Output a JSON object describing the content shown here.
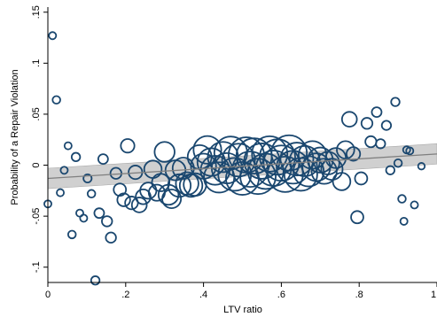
{
  "chart_data": {
    "type": "scatter",
    "title": "",
    "xlabel": "LTV ratio",
    "ylabel": "Probability of a Repair Violation",
    "xlim": [
      0,
      1
    ],
    "ylim": [
      -0.115,
      0.155
    ],
    "x_ticks": [
      {
        "value": 0,
        "label": "0"
      },
      {
        "value": 0.2,
        "label": ".2"
      },
      {
        "value": 0.4,
        "label": ".4"
      },
      {
        "value": 0.6,
        "label": ".6"
      },
      {
        "value": 0.8,
        "label": ".8"
      },
      {
        "value": 1,
        "label": "1"
      }
    ],
    "y_ticks": [
      {
        "value": -0.1,
        "label": "-.1"
      },
      {
        "value": -0.05,
        "label": "-.05"
      },
      {
        "value": 0,
        "label": "0"
      },
      {
        "value": 0.05,
        "label": ".05"
      },
      {
        "value": 0.1,
        "label": ".1"
      },
      {
        "value": 0.15,
        "label": ".15"
      }
    ],
    "grid": false,
    "legend": "none",
    "colors": {
      "marker": "#1a476f",
      "fit_line": "#7f7f7f",
      "ci_band": "#c0c0c0",
      "axis": "#000000"
    },
    "fit": {
      "type": "linear",
      "x": [
        0,
        1
      ],
      "y": [
        -0.013,
        0.011
      ],
      "ci_lower": [
        -0.023,
        0.001
      ],
      "ci_upper": [
        -0.003,
        0.021
      ]
    },
    "weight_note": "marker size proportional to observation weight (relative units)",
    "points": [
      {
        "x": 0.0,
        "y": -0.038,
        "w": 1
      },
      {
        "x": 0.012,
        "y": 0.127,
        "w": 1
      },
      {
        "x": 0.022,
        "y": 0.064,
        "w": 1.2
      },
      {
        "x": 0.032,
        "y": -0.027,
        "w": 1
      },
      {
        "x": 0.042,
        "y": -0.005,
        "w": 1
      },
      {
        "x": 0.052,
        "y": 0.019,
        "w": 1
      },
      {
        "x": 0.062,
        "y": -0.068,
        "w": 1.2
      },
      {
        "x": 0.072,
        "y": 0.008,
        "w": 1.5
      },
      {
        "x": 0.082,
        "y": -0.047,
        "w": 1
      },
      {
        "x": 0.092,
        "y": -0.052,
        "w": 1
      },
      {
        "x": 0.102,
        "y": -0.013,
        "w": 1.4
      },
      {
        "x": 0.112,
        "y": -0.028,
        "w": 1.2
      },
      {
        "x": 0.122,
        "y": -0.113,
        "w": 1.5
      },
      {
        "x": 0.132,
        "y": -0.047,
        "w": 2
      },
      {
        "x": 0.142,
        "y": 0.006,
        "w": 2
      },
      {
        "x": 0.152,
        "y": -0.055,
        "w": 2.2
      },
      {
        "x": 0.162,
        "y": -0.071,
        "w": 2.2
      },
      {
        "x": 0.175,
        "y": -0.008,
        "w": 2.5
      },
      {
        "x": 0.185,
        "y": -0.024,
        "w": 3
      },
      {
        "x": 0.195,
        "y": -0.034,
        "w": 3.2
      },
      {
        "x": 0.205,
        "y": 0.019,
        "w": 3.5
      },
      {
        "x": 0.215,
        "y": -0.037,
        "w": 3.2
      },
      {
        "x": 0.225,
        "y": -0.007,
        "w": 3.5
      },
      {
        "x": 0.235,
        "y": -0.039,
        "w": 4
      },
      {
        "x": 0.245,
        "y": -0.031,
        "w": 4
      },
      {
        "x": 0.258,
        "y": -0.025,
        "w": 4.5
      },
      {
        "x": 0.27,
        "y": -0.004,
        "w": 5
      },
      {
        "x": 0.28,
        "y": -0.027,
        "w": 4.5
      },
      {
        "x": 0.29,
        "y": -0.017,
        "w": 5
      },
      {
        "x": 0.3,
        "y": 0.013,
        "w": 6
      },
      {
        "x": 0.31,
        "y": -0.029,
        "w": 6
      },
      {
        "x": 0.318,
        "y": -0.033,
        "w": 5.5
      },
      {
        "x": 0.328,
        "y": -0.005,
        "w": 6
      },
      {
        "x": 0.338,
        "y": -0.02,
        "w": 7
      },
      {
        "x": 0.348,
        "y": -0.003,
        "w": 6.5
      },
      {
        "x": 0.358,
        "y": -0.018,
        "w": 7
      },
      {
        "x": 0.368,
        "y": -0.02,
        "w": 7
      },
      {
        "x": 0.378,
        "y": -0.019,
        "w": 7
      },
      {
        "x": 0.39,
        "y": 0.008,
        "w": 7.5
      },
      {
        "x": 0.4,
        "y": -0.001,
        "w": 8
      },
      {
        "x": 0.41,
        "y": 0.015,
        "w": 9
      },
      {
        "x": 0.42,
        "y": 0.003,
        "w": 9
      },
      {
        "x": 0.43,
        "y": -0.005,
        "w": 9.5
      },
      {
        "x": 0.44,
        "y": -0.012,
        "w": 10
      },
      {
        "x": 0.45,
        "y": 0.008,
        "w": 10
      },
      {
        "x": 0.46,
        "y": -0.003,
        "w": 10
      },
      {
        "x": 0.47,
        "y": 0.012,
        "w": 11
      },
      {
        "x": 0.48,
        "y": -0.009,
        "w": 11
      },
      {
        "x": 0.49,
        "y": 0.005,
        "w": 11
      },
      {
        "x": 0.5,
        "y": -0.013,
        "w": 11
      },
      {
        "x": 0.51,
        "y": 0.01,
        "w": 12
      },
      {
        "x": 0.52,
        "y": -0.004,
        "w": 12
      },
      {
        "x": 0.53,
        "y": 0.009,
        "w": 12
      },
      {
        "x": 0.54,
        "y": -0.011,
        "w": 12
      },
      {
        "x": 0.55,
        "y": 0.004,
        "w": 12
      },
      {
        "x": 0.56,
        "y": -0.006,
        "w": 12
      },
      {
        "x": 0.57,
        "y": 0.011,
        "w": 12
      },
      {
        "x": 0.58,
        "y": -0.003,
        "w": 12
      },
      {
        "x": 0.59,
        "y": 0.008,
        "w": 12
      },
      {
        "x": 0.6,
        "y": 0.002,
        "w": 12
      },
      {
        "x": 0.61,
        "y": -0.009,
        "w": 12
      },
      {
        "x": 0.62,
        "y": 0.012,
        "w": 12
      },
      {
        "x": 0.63,
        "y": -0.002,
        "w": 11
      },
      {
        "x": 0.64,
        "y": 0.006,
        "w": 11
      },
      {
        "x": 0.65,
        "y": -0.009,
        "w": 11
      },
      {
        "x": 0.66,
        "y": 0.004,
        "w": 10
      },
      {
        "x": 0.67,
        "y": -0.006,
        "w": 10
      },
      {
        "x": 0.68,
        "y": 0.01,
        "w": 9
      },
      {
        "x": 0.69,
        "y": -0.002,
        "w": 9
      },
      {
        "x": 0.7,
        "y": 0.005,
        "w": 8
      },
      {
        "x": 0.71,
        "y": -0.006,
        "w": 8
      },
      {
        "x": 0.72,
        "y": 0.002,
        "w": 7
      },
      {
        "x": 0.73,
        "y": -0.004,
        "w": 6.5
      },
      {
        "x": 0.74,
        "y": 0.007,
        "w": 6
      },
      {
        "x": 0.755,
        "y": -0.016,
        "w": 5
      },
      {
        "x": 0.765,
        "y": 0.015,
        "w": 5
      },
      {
        "x": 0.775,
        "y": 0.045,
        "w": 4
      },
      {
        "x": 0.785,
        "y": 0.011,
        "w": 3.5
      },
      {
        "x": 0.795,
        "y": -0.051,
        "w": 3
      },
      {
        "x": 0.805,
        "y": -0.013,
        "w": 3
      },
      {
        "x": 0.82,
        "y": 0.041,
        "w": 2.5
      },
      {
        "x": 0.83,
        "y": 0.023,
        "w": 2.5
      },
      {
        "x": 0.845,
        "y": 0.052,
        "w": 2
      },
      {
        "x": 0.855,
        "y": 0.021,
        "w": 1.8
      },
      {
        "x": 0.87,
        "y": 0.039,
        "w": 1.8
      },
      {
        "x": 0.88,
        "y": -0.005,
        "w": 1.5
      },
      {
        "x": 0.893,
        "y": 0.062,
        "w": 1.5
      },
      {
        "x": 0.9,
        "y": 0.002,
        "w": 1.2
      },
      {
        "x": 0.91,
        "y": -0.033,
        "w": 1.2
      },
      {
        "x": 0.915,
        "y": -0.055,
        "w": 1
      },
      {
        "x": 0.922,
        "y": 0.015,
        "w": 1
      },
      {
        "x": 0.93,
        "y": 0.014,
        "w": 1
      },
      {
        "x": 0.942,
        "y": -0.039,
        "w": 1
      },
      {
        "x": 0.96,
        "y": -0.001,
        "w": 0.8
      }
    ]
  }
}
